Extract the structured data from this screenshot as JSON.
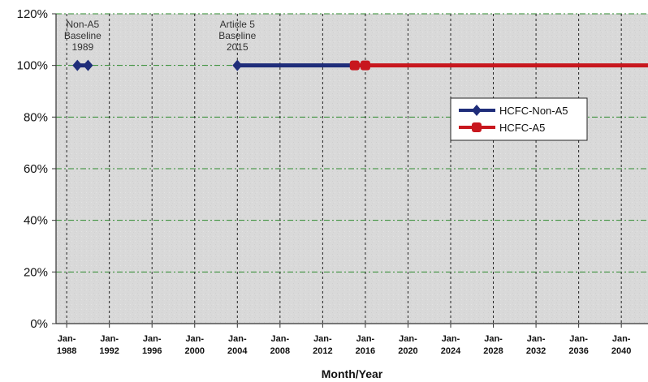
{
  "chart_data": {
    "type": "line",
    "title": "",
    "xlabel": "Month/Year",
    "ylabel": "",
    "x_tick_labels": [
      "Jan-1988",
      "Jan-1992",
      "Jan-1996",
      "Jan-2000",
      "Jan-2004",
      "Jan-2008",
      "Jan-2012",
      "Jan-2016",
      "Jan-2020",
      "Jan-2024",
      "Jan-2028",
      "Jan-2032",
      "Jan-2036",
      "Jan-2040"
    ],
    "x_ticks": [
      1988,
      1992,
      1996,
      2000,
      2004,
      2008,
      2012,
      2016,
      2020,
      2024,
      2028,
      2032,
      2036,
      2040
    ],
    "xlim": [
      1987,
      2042.5
    ],
    "y_tick_labels": [
      "0%",
      "20%",
      "40%",
      "60%",
      "80%",
      "100%",
      "120%"
    ],
    "y_ticks": [
      0,
      20,
      40,
      60,
      80,
      100,
      120
    ],
    "ylim": [
      0,
      120
    ],
    "grid": true,
    "legend_position": "upper-right",
    "series": [
      {
        "name": "HCFC-Non-A5",
        "color": "#1f2d7a",
        "marker": "diamond",
        "points": [
          {
            "x": 1989,
            "y": 100
          },
          {
            "x": 1990,
            "y": 100
          },
          {
            "x": 2004,
            "y": 100
          },
          {
            "x": 2014.9,
            "y": 100
          }
        ],
        "segments": [
          [
            0,
            1
          ],
          [
            2,
            3
          ]
        ]
      },
      {
        "name": "HCFC-A5",
        "color": "#c8171e",
        "marker": "square",
        "points": [
          {
            "x": 2015,
            "y": 100
          },
          {
            "x": 2016,
            "y": 100
          },
          {
            "x": 2042.5,
            "y": 100
          }
        ],
        "segments": [
          [
            0,
            2
          ]
        ],
        "marker_points": [
          0,
          1
        ]
      }
    ],
    "annotations": [
      {
        "lines": [
          "Non-A5",
          "Baseline",
          "1989"
        ],
        "x": 1989.5
      },
      {
        "lines": [
          "Article 5",
          "Baseline",
          "2015"
        ],
        "x": 2004
      }
    ]
  }
}
